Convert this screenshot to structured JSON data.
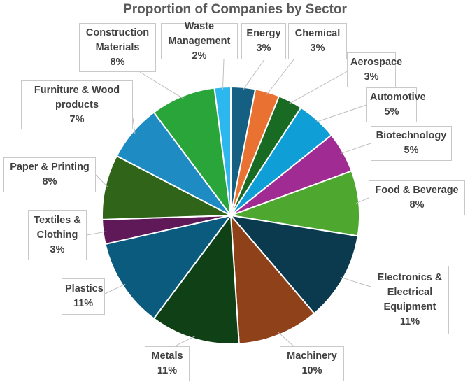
{
  "chart_data": {
    "type": "pie",
    "title": "Proportion of Companies by Sector",
    "slices": [
      {
        "label": "Energy",
        "value": 3,
        "pct": "3%",
        "color": "#156082"
      },
      {
        "label": "Chemical",
        "value": 3,
        "pct": "3%",
        "color": "#e97132"
      },
      {
        "label": "Aerospace",
        "value": 3,
        "pct": "3%",
        "color": "#196b24"
      },
      {
        "label": "Automotive",
        "value": 5,
        "pct": "5%",
        "color": "#0f9ed5"
      },
      {
        "label": "Biotechnology",
        "value": 5,
        "pct": "5%",
        "color": "#a02b93"
      },
      {
        "label": "Food & Beverage",
        "value": 8,
        "pct": "8%",
        "color": "#4ea72e"
      },
      {
        "label": "Electronics & Electrical Equipment",
        "value": 11,
        "pct": "11%",
        "color": "#0b3a4e"
      },
      {
        "label": "Machinery",
        "value": 10,
        "pct": "10%",
        "color": "#8f4119"
      },
      {
        "label": "Metals",
        "value": 11,
        "pct": "11%",
        "color": "#0f4016"
      },
      {
        "label": "Plastics",
        "value": 11,
        "pct": "11%",
        "color": "#0a5b7e"
      },
      {
        "label": "Textiles & Clothing",
        "value": 3,
        "pct": "3%",
        "color": "#5f1958"
      },
      {
        "label": "Paper & Printing",
        "value": 8,
        "pct": "8%",
        "color": "#306419"
      },
      {
        "label": "Furniture & Wood products",
        "value": 7,
        "pct": "7%",
        "color": "#1e8bc3"
      },
      {
        "label": "Construction Materials",
        "value": 8,
        "pct": "8%",
        "color": "#29a53a"
      },
      {
        "label": "Waste Management",
        "value": 2,
        "pct": "2%",
        "color": "#2cb7ee"
      }
    ],
    "legend": "none (data labels with leader lines)"
  }
}
